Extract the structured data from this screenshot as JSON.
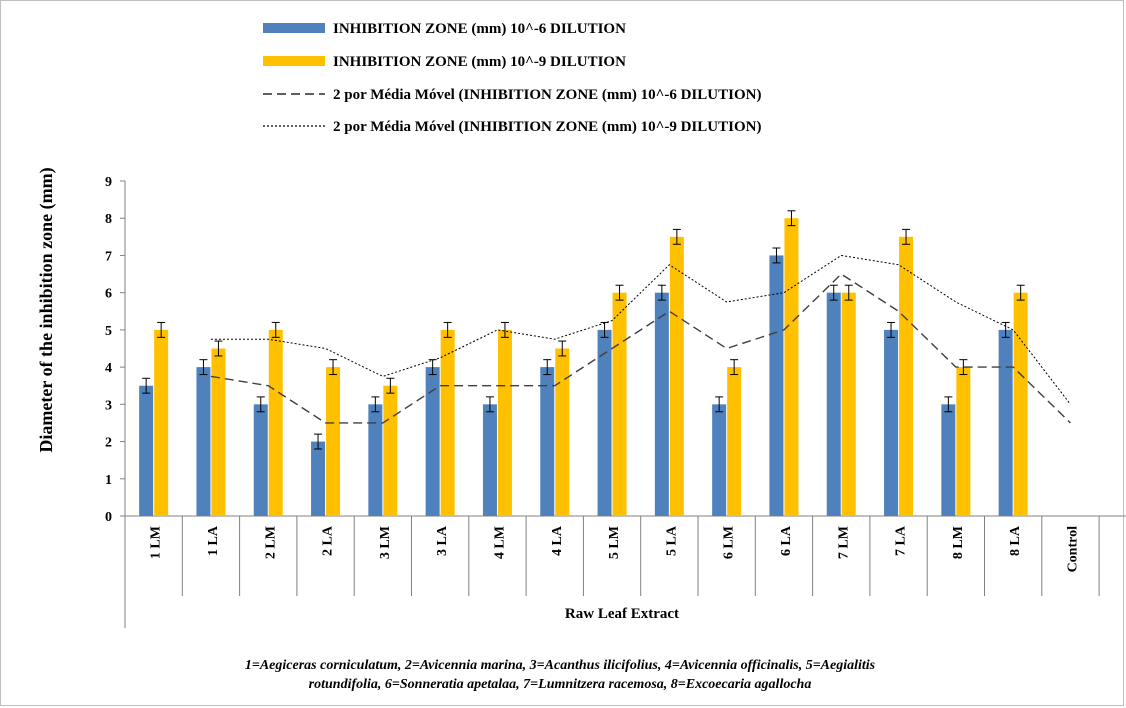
{
  "chart_data": {
    "type": "bar",
    "categories": [
      "1 LM",
      "1 LA",
      "2 LM",
      "2 LA",
      "3 LM",
      "3 LA",
      "4 LM",
      "4 LA",
      "5 LM",
      "5 LA",
      "6 LM",
      "6 LA",
      "7 LM",
      "7 LA",
      "8 LM",
      "8 LA",
      "Control"
    ],
    "series": [
      {
        "name": "INHIBITION ZONE (mm) 10^-6 DILUTION",
        "color": "#4f81bd",
        "values": [
          3.5,
          4,
          3,
          2,
          3,
          4,
          3,
          4,
          5,
          6,
          3,
          7,
          6,
          5,
          3,
          5,
          0
        ]
      },
      {
        "name": "INHIBITION ZONE (mm) 10^-9 DILUTION",
        "color": "#ffc000",
        "values": [
          5,
          4.5,
          5,
          4,
          3.5,
          5,
          5,
          4.5,
          6,
          7.5,
          4,
          8,
          6,
          7.5,
          4,
          6,
          0
        ]
      }
    ],
    "error_bar": 0.2,
    "moving_averages": [
      {
        "name": "2 por Média Móvel (INHIBITION ZONE (mm) 10^-6 DILUTION)",
        "style": "dashed"
      },
      {
        "name": "2 por Média Móvel (INHIBITION ZONE (mm) 10^-9 DILUTION)",
        "style": "dotted"
      }
    ],
    "title": "",
    "xlabel": "Raw Leaf Extract",
    "ylabel": "Diameter of the inhibition zone (mm)",
    "ylim": [
      0,
      9
    ],
    "yticks": [
      0,
      1,
      2,
      3,
      4,
      5,
      6,
      7,
      8,
      9
    ],
    "grid": false,
    "legend_position": "top"
  },
  "footnote": {
    "line1": "1=Aegiceras corniculatum, 2=Avicennia marina, 3=Acanthus ilicifolius, 4=Avicennia officinalis, 5=Aegialitis",
    "line2": "rotundifolia, 6=Sonneratia apetalaa, 7=Lumnitzera racemosa, 8=Excoecaria agallocha"
  }
}
